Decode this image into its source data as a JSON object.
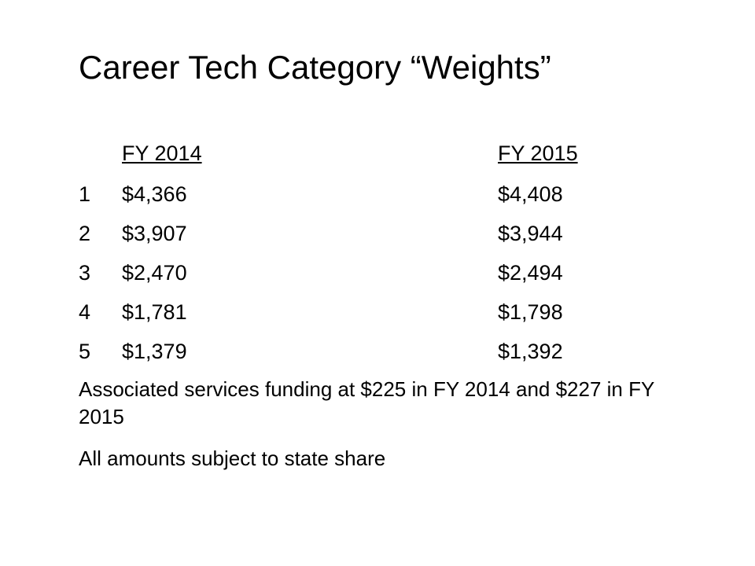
{
  "title": "Career Tech Category “Weights”",
  "table": {
    "header": [
      "FY 2014",
      "FY 2015"
    ],
    "rows": [
      [
        "1",
        "$4,366",
        "$4,408"
      ],
      [
        "2",
        "$3,907",
        "$3,944"
      ],
      [
        "3",
        "$2,470",
        "$2,494"
      ],
      [
        "4",
        "$1,781",
        "$1,798"
      ],
      [
        "5",
        "$1,379",
        "$1,392"
      ]
    ]
  },
  "notes": [
    "Associated services funding at $225 in FY 2014 and $227 in FY 2015",
    "All amounts subject to state share"
  ]
}
